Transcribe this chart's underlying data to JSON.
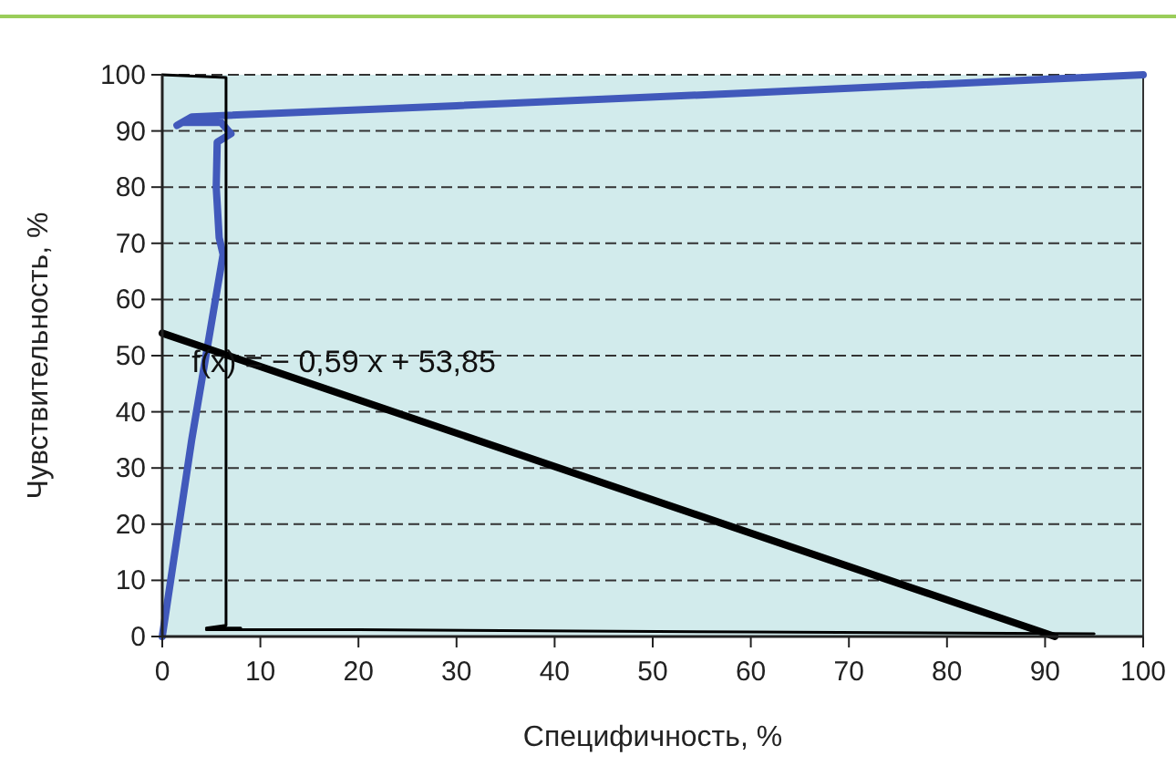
{
  "chart_data": {
    "type": "line",
    "xlabel": "Специфичность, %",
    "ylabel": "Чувствительность, %",
    "xlim": [
      0,
      100
    ],
    "xticks": [
      0,
      10,
      20,
      30,
      40,
      50,
      60,
      70,
      80,
      90,
      100
    ],
    "ylim": [
      0,
      100
    ],
    "yticks": [
      0,
      10,
      20,
      30,
      40,
      50,
      60,
      70,
      80,
      90,
      100
    ],
    "grid": "y",
    "marker": "none",
    "series": [
      {
        "color": "#4159bb",
        "x": [
          0,
          3,
          6.2,
          5.8,
          5.5,
          5.6,
          7,
          6,
          2,
          1.5,
          3,
          30,
          60,
          100
        ],
        "values": [
          0,
          35,
          68,
          71,
          80,
          88,
          89.5,
          91.5,
          91.5,
          91,
          92.5,
          94.5,
          96.8,
          100
        ]
      },
      {
        "color": "#000000",
        "x": [
          0,
          6.5,
          6.5,
          6.5,
          4.5,
          8,
          4.5,
          20,
          60,
          95
        ],
        "values": [
          100,
          99.5,
          50,
          2,
          1.5,
          1.5,
          1.2,
          1.2,
          0.8,
          0.5
        ]
      },
      {
        "color": "#000000",
        "x": [
          0,
          91
        ],
        "values": [
          54,
          0
        ]
      }
    ],
    "annotations": [
      {
        "text": "f(x) = − 0,59 x + 53,85",
        "x": 3,
        "y": 47
      }
    ]
  }
}
